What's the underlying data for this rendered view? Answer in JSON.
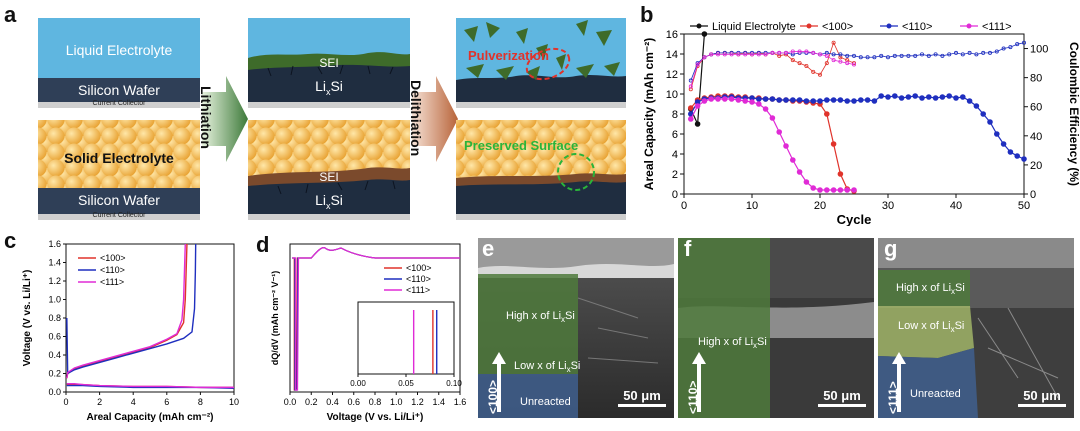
{
  "panels": {
    "a": "a",
    "b": "b",
    "c": "c",
    "d": "d",
    "e": "e",
    "f": "f",
    "g": "g"
  },
  "schematic": {
    "liquid_electrolyte": "Liquid Electrolyte",
    "silicon_wafer": "Silicon Wafer",
    "current_collector": "Current Collector",
    "solid_electrolyte": "Solid Electrolyte",
    "lithiation": "Lithiation",
    "delithiation": "Delithiation",
    "sei": "SEI",
    "lixsi": "LixSi",
    "pulverization": "Pulverization",
    "preserved_surface": "Preserved Surface"
  },
  "colors": {
    "liquid": "#5fb6e0",
    "solid": "#f1b64a",
    "wafer": "#2f3f57",
    "collector": "#cfcfcf",
    "sei_green": "#3e6b2a",
    "sei_brown": "#7b4a2c",
    "s100": "#e0332b",
    "s110": "#1f2fbf",
    "s111": "#e02bd6",
    "liquid_line": "#111111"
  },
  "chart_data": [
    {
      "id": "b",
      "type": "line",
      "xlabel": "Cycle",
      "ylabel": "Areal Capacity (mAh cm⁻²)",
      "y2label": "Coulombic Efficiency (%)",
      "xlim": [
        0,
        50
      ],
      "ylim": [
        0,
        16
      ],
      "y2lim": [
        0,
        110
      ],
      "xticks": [
        "0",
        "10",
        "20",
        "30",
        "40",
        "50"
      ],
      "yticks": [
        "0",
        "2",
        "4",
        "6",
        "8",
        "10",
        "12",
        "14",
        "16"
      ],
      "y2ticks": [
        "0",
        "20",
        "40",
        "60",
        "80",
        "100"
      ],
      "legend": [
        "Liquid Electrolyte",
        "<100>",
        "<110>",
        "<111>"
      ],
      "series": [
        {
          "name": "Liquid Electrolyte",
          "x": [
            1,
            2,
            3
          ],
          "y": [
            8.5,
            7,
            16
          ]
        },
        {
          "name": "<100>",
          "x": [
            1,
            2,
            3,
            4,
            5,
            6,
            7,
            8,
            9,
            10,
            11,
            12,
            13,
            14,
            15,
            16,
            17,
            18,
            19,
            20,
            21,
            22,
            23,
            24,
            25
          ],
          "y": [
            8.6,
            9.4,
            9.6,
            9.7,
            9.8,
            9.8,
            9.8,
            9.7,
            9.7,
            9.6,
            9.6,
            9.5,
            9.5,
            9.4,
            9.4,
            9.3,
            9.3,
            9.2,
            9.1,
            9.0,
            8.0,
            5.0,
            2.0,
            0.5,
            0.3
          ]
        },
        {
          "name": "<110>",
          "x": [
            1,
            2,
            3,
            4,
            5,
            6,
            7,
            8,
            9,
            10,
            11,
            12,
            13,
            14,
            15,
            16,
            17,
            18,
            19,
            20,
            21,
            22,
            23,
            24,
            25,
            26,
            27,
            28,
            29,
            30,
            31,
            32,
            33,
            34,
            35,
            36,
            37,
            38,
            39,
            40,
            41,
            42,
            43,
            44,
            45,
            46,
            47,
            48,
            49,
            50
          ],
          "y": [
            8.0,
            9.2,
            9.5,
            9.6,
            9.6,
            9.7,
            9.7,
            9.6,
            9.6,
            9.6,
            9.5,
            9.5,
            9.5,
            9.4,
            9.4,
            9.4,
            9.4,
            9.3,
            9.3,
            9.3,
            9.4,
            9.4,
            9.4,
            9.3,
            9.3,
            9.4,
            9.4,
            9.3,
            9.8,
            9.7,
            9.8,
            9.6,
            9.7,
            9.8,
            9.6,
            9.7,
            9.6,
            9.7,
            9.8,
            9.6,
            9.7,
            9.3,
            8.8,
            8.0,
            7.2,
            6.0,
            5.0,
            4.2,
            3.8,
            3.5
          ]
        },
        {
          "name": "<111>",
          "x": [
            1,
            2,
            3,
            4,
            5,
            6,
            7,
            8,
            9,
            10,
            11,
            12,
            13,
            14,
            15,
            16,
            17,
            18,
            19,
            20,
            21,
            22,
            23,
            24,
            25
          ],
          "y": [
            7.5,
            8.8,
            9.3,
            9.5,
            9.5,
            9.5,
            9.5,
            9.4,
            9.3,
            9.2,
            9.0,
            8.5,
            7.6,
            6.2,
            4.8,
            3.4,
            2.2,
            1.2,
            0.6,
            0.4,
            0.4,
            0.4,
            0.4,
            0.4,
            0.4
          ]
        },
        {
          "name": "<100> CE",
          "axis": "y2",
          "x": [
            1,
            2,
            3,
            4,
            5,
            6,
            7,
            8,
            9,
            10,
            11,
            12,
            13,
            14,
            15,
            16,
            17,
            18,
            19,
            20,
            21,
            22,
            23,
            24,
            25
          ],
          "y": [
            72,
            88,
            94,
            96,
            97,
            97,
            97,
            96,
            97,
            96,
            97,
            96,
            97,
            95,
            96,
            92,
            90,
            88,
            84,
            82,
            90,
            104,
            94,
            92,
            90
          ]
        },
        {
          "name": "<110> CE",
          "axis": "y2",
          "x": [
            1,
            2,
            3,
            4,
            5,
            6,
            7,
            8,
            9,
            10,
            11,
            12,
            13,
            14,
            15,
            16,
            17,
            18,
            19,
            20,
            21,
            22,
            23,
            24,
            25,
            26,
            27,
            28,
            29,
            30,
            31,
            32,
            33,
            34,
            35,
            36,
            37,
            38,
            39,
            40,
            41,
            42,
            43,
            44,
            45,
            46,
            47,
            48,
            49,
            50
          ],
          "y": [
            78,
            90,
            94,
            96,
            97,
            97,
            97,
            97,
            97,
            97,
            97,
            97,
            97,
            97,
            97,
            96,
            97,
            97,
            97,
            96,
            97,
            96,
            96,
            95,
            95,
            94,
            94,
            94,
            95,
            94,
            95,
            95,
            95,
            95,
            96,
            95,
            96,
            95,
            96,
            97,
            96,
            97,
            96,
            97,
            97,
            98,
            100,
            101,
            103,
            104
          ]
        },
        {
          "name": "<111> CE",
          "axis": "y2",
          "x": [
            1,
            2,
            3,
            4,
            5,
            6,
            7,
            8,
            9,
            10,
            11,
            12,
            13,
            14,
            15,
            16,
            17,
            18,
            19,
            20,
            21,
            22,
            23,
            24,
            25
          ],
          "y": [
            74,
            89,
            94,
            96,
            96,
            96,
            96,
            96,
            96,
            96,
            96,
            96,
            97,
            97,
            97,
            98,
            98,
            98,
            97,
            96,
            95,
            92,
            91,
            90,
            89
          ]
        }
      ]
    },
    {
      "id": "c",
      "type": "line",
      "xlabel": "Areal Capacity (mAh cm⁻²)",
      "ylabel": "Voltage (V vs. Li/Li⁺)",
      "xlim": [
        0,
        10
      ],
      "ylim": [
        0,
        1.6
      ],
      "xticks": [
        "0",
        "2",
        "4",
        "6",
        "8",
        "10"
      ],
      "yticks": [
        "0.0",
        "0.2",
        "0.4",
        "0.6",
        "0.8",
        "1.0",
        "1.2",
        "1.4",
        "1.6"
      ],
      "legend": [
        "<100>",
        "<110>",
        "<111>"
      ],
      "series": [
        {
          "name": "<100>",
          "x": [
            0.05,
            0.1,
            0.5,
            1,
            2,
            3,
            4,
            5,
            6,
            6.6,
            7.0,
            7.1,
            7.15,
            7.2
          ],
          "y": [
            0.15,
            0.2,
            0.25,
            0.28,
            0.33,
            0.38,
            0.43,
            0.48,
            0.56,
            0.62,
            0.75,
            1.0,
            1.3,
            1.6
          ]
        },
        {
          "name": "<110>",
          "x": [
            0.05,
            0.1,
            0.5,
            1,
            2,
            3,
            4,
            5,
            6,
            7,
            7.5,
            7.65,
            7.7,
            7.72
          ],
          "y": [
            0.8,
            0.2,
            0.24,
            0.27,
            0.32,
            0.37,
            0.42,
            0.47,
            0.52,
            0.58,
            0.65,
            0.9,
            1.3,
            1.6
          ]
        },
        {
          "name": "<111>",
          "x": [
            0.05,
            0.1,
            0.5,
            1,
            2,
            3,
            4,
            5,
            6,
            6.6,
            6.9,
            7.0,
            7.05,
            7.1
          ],
          "y": [
            0.15,
            0.21,
            0.26,
            0.29,
            0.34,
            0.39,
            0.44,
            0.49,
            0.57,
            0.63,
            0.78,
            1.0,
            1.3,
            1.6
          ]
        },
        {
          "name": "<100> lith",
          "x": [
            0.05,
            0.5,
            1,
            2,
            4,
            6,
            8,
            10
          ],
          "y": [
            0.08,
            0.08,
            0.08,
            0.07,
            0.06,
            0.06,
            0.05,
            0.05
          ]
        },
        {
          "name": "<110> lith",
          "x": [
            0.05,
            0.5,
            1,
            2,
            4,
            6,
            8,
            10
          ],
          "y": [
            0.07,
            0.07,
            0.07,
            0.06,
            0.05,
            0.05,
            0.05,
            0.04
          ]
        },
        {
          "name": "<111> lith",
          "x": [
            0.05,
            0.5,
            1,
            2,
            4,
            6,
            8,
            10
          ],
          "y": [
            0.09,
            0.09,
            0.08,
            0.07,
            0.06,
            0.06,
            0.05,
            0.05
          ]
        }
      ]
    },
    {
      "id": "d",
      "type": "line",
      "xlabel": "Voltage (V vs. Li/Li⁺)",
      "ylabel": "dQ/dV (mAh cm⁻² V⁻¹)",
      "xlim": [
        0,
        1.6
      ],
      "xticks": [
        "0.0",
        "0.2",
        "0.4",
        "0.6",
        "0.8",
        "1.0",
        "1.2",
        "1.4",
        "1.6"
      ],
      "legend": [
        "<100>",
        "<110>",
        "<111>"
      ],
      "inset": {
        "xlim": [
          0,
          0.1
        ],
        "xticks": [
          "0.00",
          "0.05",
          "0.10"
        ],
        "lines": {
          "<100>": 0.078,
          "<110>": 0.082,
          "<111>": 0.058
        }
      }
    }
  ],
  "sem": {
    "e": {
      "high": "High x of LixSi",
      "low": "Low x of LixSi",
      "unreacted": "Unreacted",
      "orient": "<100>",
      "scale": "50 μm"
    },
    "f": {
      "high": "High x of LixSi",
      "orient": "<110>",
      "scale": "50 μm"
    },
    "g": {
      "high": "High x of LixSi",
      "low": "Low x of LixSi",
      "unreacted": "Unreacted",
      "orient": "<111>",
      "scale": "50 μm"
    }
  }
}
